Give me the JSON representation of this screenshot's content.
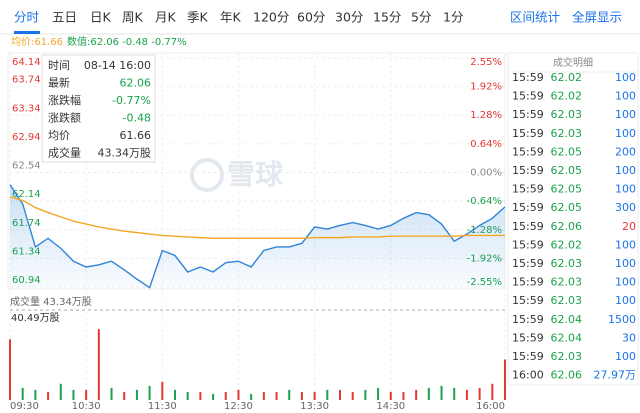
{
  "tabs": [
    "分时",
    "五日",
    "日K",
    "周K",
    "月K",
    "季K",
    "年K",
    "120分",
    "60分",
    "30分",
    "15分",
    "5分",
    "1分"
  ],
  "right_tabs": [
    "区间统计",
    "全屏显示"
  ],
  "legend": {
    "avg": "均价:61.66",
    "price": "数值:62.06 -0.48 -0.77%"
  },
  "tooltip": [
    [
      "时间",
      "08-14 16:00"
    ],
    [
      "最新",
      "62.06"
    ],
    [
      "涨跌幅",
      "-0.77%"
    ],
    [
      "涨跌额",
      "-0.48"
    ],
    [
      "均价",
      "61.66"
    ],
    [
      "成交量",
      "43.34万股"
    ]
  ],
  "watermark": "雪球",
  "trades": {
    "title": "成交明细",
    "rows": [
      [
        "15:59",
        "62.02",
        "100"
      ],
      [
        "15:59",
        "62.02",
        "100"
      ],
      [
        "15:59",
        "62.03",
        "100"
      ],
      [
        "15:59",
        "62.03",
        "100"
      ],
      [
        "15:59",
        "62.05",
        "200"
      ],
      [
        "15:59",
        "62.05",
        "100"
      ],
      [
        "15:59",
        "62.05",
        "100"
      ],
      [
        "15:59",
        "62.05",
        "300"
      ],
      [
        "15:59",
        "62.06",
        "20"
      ],
      [
        "15:59",
        "62.02",
        "100"
      ],
      [
        "15:59",
        "62.03",
        "100"
      ],
      [
        "15:59",
        "62.03",
        "100"
      ],
      [
        "15:59",
        "62.03",
        "100"
      ],
      [
        "15:59",
        "62.04",
        "1500"
      ],
      [
        "15:59",
        "62.04",
        "30"
      ],
      [
        "15:59",
        "62.03",
        "100"
      ],
      [
        "16:00",
        "62.06",
        "27.97万"
      ]
    ],
    "volume_colors": [
      "#1a73e8",
      "#1a73e8",
      "#1a73e8",
      "#1a73e8",
      "#1a73e8",
      "#1a73e8",
      "#1a73e8",
      "#1a73e8",
      "#e53935",
      "#1a73e8",
      "#1a73e8",
      "#1a73e8",
      "#1a73e8",
      "#1a73e8",
      "#1a73e8",
      "#1a73e8",
      "#1a73e8"
    ]
  },
  "chart_data": [
    {
      "type": "line",
      "ylim": [
        60.94,
        64.14
      ],
      "yticks": [
        64.14,
        63.74,
        63.34,
        62.94,
        62.54,
        62.14,
        61.74,
        61.34,
        60.94
      ],
      "y2lim": [
        -2.55,
        2.55
      ],
      "y2ticks": [
        {
          "value": 2.55,
          "label": "2.55%"
        },
        {
          "value": 1.92,
          "label": "1.92%"
        },
        {
          "value": 1.28,
          "label": "1.28%"
        },
        {
          "value": 0.64,
          "label": "0.64%"
        },
        {
          "value": 0,
          "label": "0.00%"
        },
        {
          "value": -0.64,
          "label": "-0.64%"
        },
        {
          "value": -1.28,
          "label": "-1.28%"
        },
        {
          "value": -1.92,
          "label": "-1.92%"
        },
        {
          "value": -2.55,
          "label": "-2.55%"
        }
      ],
      "grid": true,
      "series": [
        {
          "name": "数值",
          "color": "#2f84d8",
          "values": [
            62.37,
            62.1,
            61.5,
            61.62,
            61.48,
            61.3,
            61.22,
            61.25,
            61.3,
            61.18,
            61.05,
            60.93,
            61.45,
            61.38,
            61.15,
            61.22,
            61.15,
            61.28,
            61.3,
            61.22,
            61.45,
            61.5,
            61.5,
            61.55,
            61.78,
            61.75,
            61.8,
            61.84,
            61.8,
            61.75,
            61.8,
            61.9,
            61.98,
            61.95,
            61.82,
            61.58,
            61.68,
            61.8,
            61.9,
            62.06
          ]
        },
        {
          "name": "均价",
          "color": "#f5a623",
          "values": [
            62.2,
            62.15,
            62.05,
            61.98,
            61.92,
            61.86,
            61.82,
            61.78,
            61.75,
            61.72,
            61.7,
            61.68,
            61.66,
            61.65,
            61.64,
            61.63,
            61.62,
            61.62,
            61.62,
            61.62,
            61.62,
            61.62,
            61.62,
            61.62,
            61.63,
            61.63,
            61.63,
            61.64,
            61.64,
            61.64,
            61.65,
            61.65,
            61.65,
            61.65,
            61.65,
            61.65,
            61.66,
            61.66,
            61.66,
            61.66
          ]
        }
      ]
    },
    {
      "type": "bar",
      "title": "成交量 43.34万股",
      "categories": [
        "09:30",
        null,
        null,
        null,
        null,
        null,
        "10:30",
        null,
        null,
        null,
        null,
        null,
        "11:30",
        null,
        null,
        null,
        null,
        null,
        "12:30",
        null,
        null,
        null,
        null,
        null,
        "13:30",
        null,
        null,
        null,
        null,
        null,
        "14:30",
        null,
        null,
        null,
        null,
        null,
        null,
        null,
        null,
        "16:00"
      ],
      "ylim": [
        0,
        40.49
      ],
      "yticks": [
        {
          "value": 40.49,
          "label": "40.49万股"
        }
      ],
      "values": [
        30,
        6,
        5,
        4,
        8,
        5,
        5,
        35,
        6,
        4,
        5,
        7,
        9,
        5,
        4,
        4,
        3,
        4,
        5,
        3,
        4,
        4,
        5,
        4,
        4,
        5,
        5,
        4,
        5,
        6,
        4,
        4,
        5,
        6,
        7,
        6,
        5,
        6,
        8,
        20
      ],
      "colors": [
        "#e53935",
        "#1aa34a",
        "#1aa34a",
        "#e53935",
        "#1aa34a",
        "#1aa34a",
        "#e53935",
        "#e53935",
        "#1aa34a",
        "#e53935",
        "#1aa34a",
        "#1aa34a",
        "#e53935",
        "#1aa34a",
        "#1aa34a",
        "#e53935",
        "#1aa34a",
        "#e53935",
        "#e53935",
        "#1aa34a",
        "#e53935",
        "#e53935",
        "#1aa34a",
        "#e53935",
        "#e53935",
        "#1aa34a",
        "#e53935",
        "#e53935",
        "#1aa34a",
        "#1aa34a",
        "#e53935",
        "#e53935",
        "#e53935",
        "#1aa34a",
        "#1aa34a",
        "#1aa34a",
        "#e53935",
        "#e53935",
        "#e53935",
        "#e53935"
      ]
    }
  ]
}
